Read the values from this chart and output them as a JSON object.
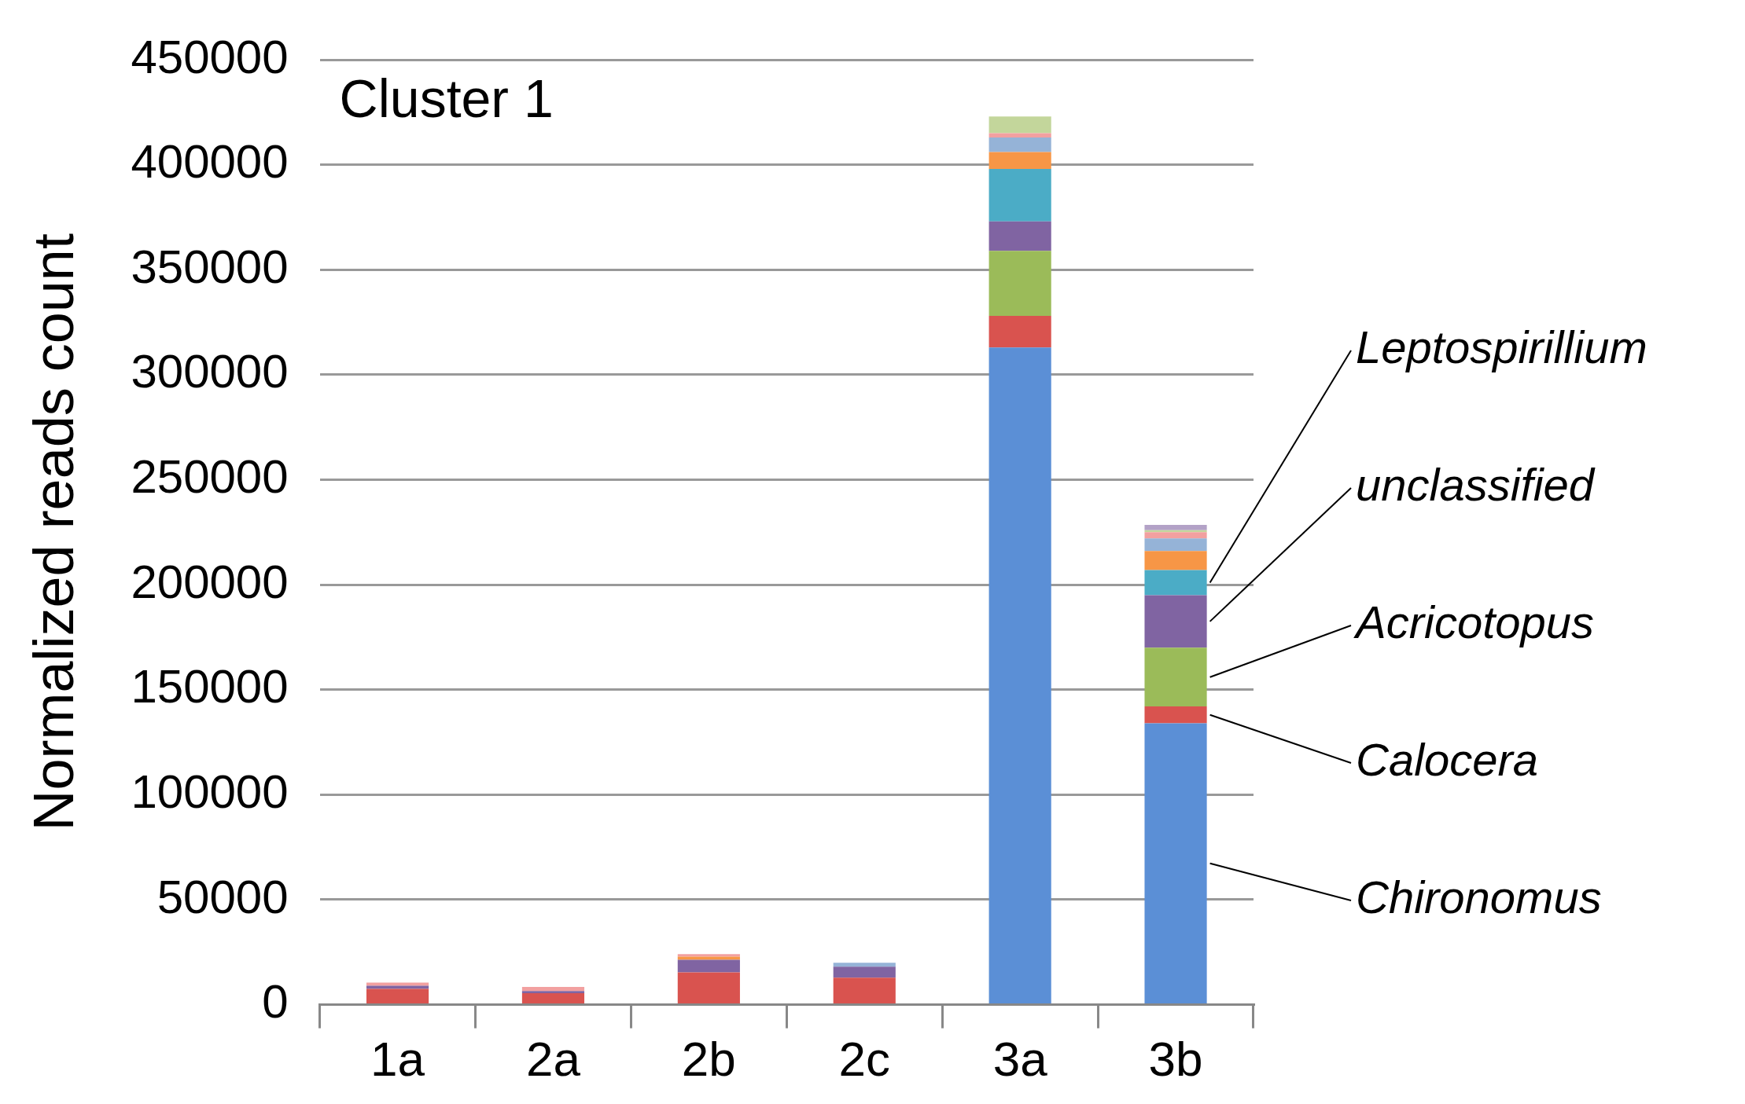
{
  "chart_data": {
    "type": "bar",
    "title": "Cluster 1",
    "ylabel": "Normalized reads count",
    "stacked": true,
    "categories": [
      "1a",
      "2a",
      "2b",
      "2c",
      "3a",
      "3b"
    ],
    "series": [
      {
        "name": "Chironomus",
        "color": "#5b8fd6",
        "values": [
          0,
          0,
          0,
          0,
          313000,
          134000
        ]
      },
      {
        "name": "Calocera",
        "color": "#d9534f",
        "values": [
          7500,
          5500,
          15400,
          12900,
          15000,
          8000
        ]
      },
      {
        "name": "Acricotopus",
        "color": "#9bbb59",
        "values": [
          0,
          0,
          0,
          0,
          31000,
          28000
        ]
      },
      {
        "name": "unclassified",
        "color": "#8064a2",
        "values": [
          1500,
          1000,
          6000,
          5200,
          14000,
          25000
        ]
      },
      {
        "name": "Leptospirillium",
        "color": "#4bacc6",
        "values": [
          0,
          0,
          0,
          0,
          25000,
          12000
        ]
      },
      {
        "color": "#f79646",
        "values": [
          0,
          0,
          1500,
          0,
          8000,
          9000
        ]
      },
      {
        "color": "#95b3d7",
        "values": [
          0,
          0,
          0,
          1900,
          7000,
          6000
        ]
      },
      {
        "color": "#f2a0a0",
        "values": [
          1500,
          2000,
          1200,
          0,
          2000,
          3000
        ]
      },
      {
        "color": "#c3d69b",
        "values": [
          0,
          0,
          0,
          0,
          8000,
          1000
        ]
      },
      {
        "color": "#b3a2c7",
        "values": [
          0,
          0,
          0,
          0,
          0,
          2500
        ]
      }
    ],
    "ylim": [
      0,
      450000
    ],
    "yticks": [
      0,
      50000,
      100000,
      150000,
      200000,
      250000,
      300000,
      350000,
      400000,
      450000
    ],
    "grid": "y",
    "legend": false
  }
}
